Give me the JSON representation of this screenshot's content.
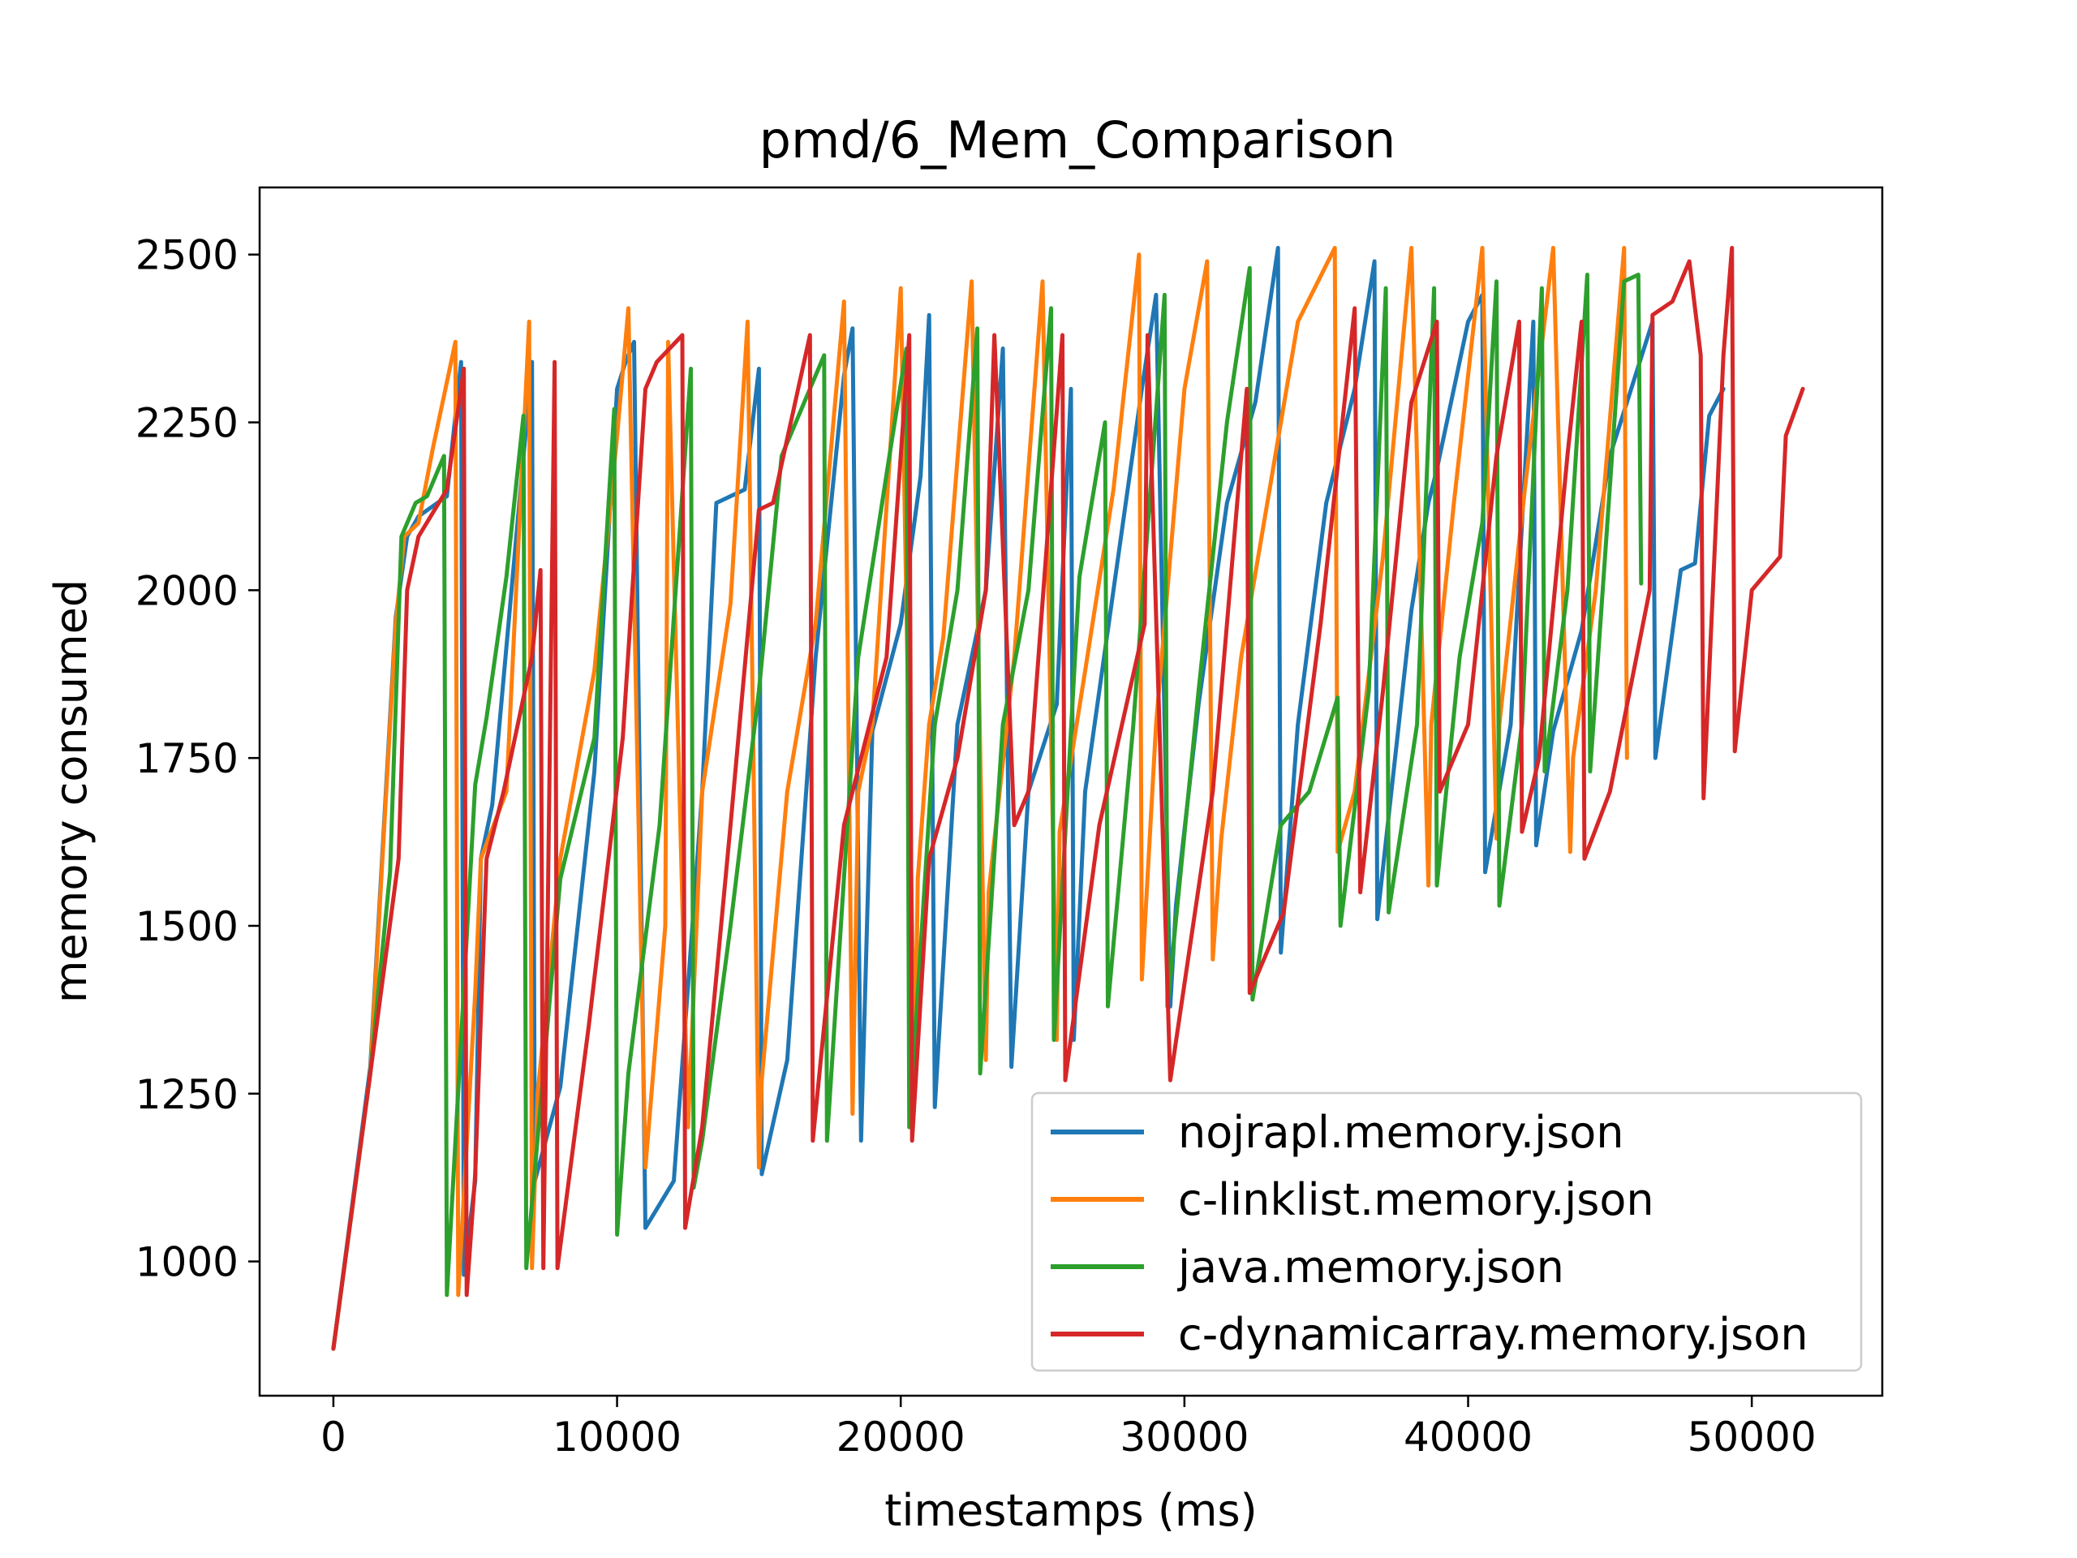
{
  "chart_data": {
    "type": "line",
    "title": "pmd/6_Mem_Comparison",
    "xlabel": "timestamps (ms)",
    "ylabel": "memory consumed",
    "xlim": [
      -2600,
      54600
    ],
    "ylim": [
      800,
      2600
    ],
    "xticks": [
      0,
      10000,
      20000,
      30000,
      40000,
      50000
    ],
    "xtick_labels": [
      "0",
      "10000",
      "20000",
      "30000",
      "40000",
      "50000"
    ],
    "yticks": [
      1000,
      1250,
      1500,
      1750,
      2000,
      2250,
      2500
    ],
    "ytick_labels": [
      "1000",
      "1250",
      "1500",
      "1750",
      "2000",
      "2250",
      "2500"
    ],
    "grid": false,
    "legend_position": "lower-right",
    "series": [
      {
        "name": "nojrapl.memory.json",
        "color": "#1f77b4",
        "x": [
          0,
          1300,
          2200,
          2600,
          3000,
          4000,
          4500,
          4600,
          5000,
          5200,
          5600,
          7000,
          7100,
          8000,
          9200,
          10000,
          10300,
          10600,
          11000,
          12000,
          13000,
          13500,
          14500,
          15000,
          15100,
          16000,
          17000,
          18000,
          18300,
          18600,
          19000,
          20000,
          20700,
          21000,
          21200,
          22000,
          23000,
          23600,
          23900,
          24500,
          25500,
          26000,
          26100,
          26500,
          27500,
          28500,
          29000,
          29500,
          29700,
          30500,
          31500,
          32500,
          33300,
          33400,
          34000,
          35000,
          36000,
          36700,
          36800,
          38000,
          38600,
          38900,
          40000,
          40500,
          40600,
          41500,
          42300,
          42400,
          43000,
          44000,
          45000,
          46500,
          46600,
          47500,
          48000,
          48500,
          49000
        ],
        "y": [
          870,
          1290,
          1960,
          2080,
          2110,
          2140,
          2340,
          980,
          1120,
          1600,
          1680,
          2340,
          1120,
          1260,
          1730,
          2300,
          2340,
          2370,
          1050,
          1120,
          1700,
          2130,
          2150,
          2330,
          1130,
          1300,
          1900,
          2320,
          2390,
          1180,
          1790,
          1950,
          2170,
          2410,
          1230,
          1800,
          2000,
          2360,
          1290,
          1700,
          1830,
          2300,
          1330,
          1700,
          2000,
          2300,
          2440,
          1380,
          1530,
          1830,
          2130,
          2280,
          2510,
          1460,
          1800,
          2130,
          2300,
          2490,
          1510,
          1970,
          2130,
          2180,
          2400,
          2440,
          1580,
          1800,
          2400,
          1620,
          1790,
          1940,
          2200,
          2400,
          1750,
          2030,
          2040,
          2260,
          2300
        ]
      },
      {
        "name": "c-linklist.memory.json",
        "color": "#ff7f0e",
        "x": [
          0,
          1300,
          2200,
          2500,
          3000,
          3500,
          4300,
          4400,
          5000,
          5200,
          6100,
          6900,
          7000,
          7200,
          8000,
          9200,
          10000,
          10400,
          11000,
          11700,
          11800,
          12500,
          13000,
          14000,
          14600,
          15000,
          15100,
          16000,
          17000,
          18000,
          18300,
          18500,
          19000,
          20000,
          20500,
          20600,
          21000,
          21500,
          22500,
          23000,
          23100,
          24000,
          25000,
          25500,
          25600,
          26500,
          27500,
          28400,
          28500,
          29000,
          30000,
          30800,
          31000,
          31300,
          32000,
          33000,
          34000,
          35300,
          35400,
          36000,
          37000,
          38000,
          38600,
          38700,
          39500,
          40500,
          41000,
          41100,
          42000,
          43000,
          43600,
          43700,
          44500,
          45500,
          45600
        ],
        "y": [
          870,
          1280,
          1950,
          2080,
          2100,
          2210,
          2370,
          950,
          1400,
          1600,
          1700,
          2400,
          990,
          1250,
          1600,
          1880,
          2230,
          2420,
          1140,
          1500,
          2370,
          1200,
          1700,
          1980,
          2400,
          1140,
          1270,
          1700,
          1950,
          2430,
          1220,
          1700,
          1800,
          2450,
          1270,
          1570,
          1800,
          1930,
          2460,
          1300,
          1550,
          1900,
          2460,
          1330,
          1640,
          1880,
          2150,
          2500,
          1420,
          1800,
          2300,
          2490,
          1450,
          1630,
          1900,
          2150,
          2400,
          2510,
          1610,
          1700,
          2050,
          2510,
          1560,
          1800,
          2130,
          2510,
          1630,
          1800,
          2150,
          2510,
          1610,
          1750,
          2000,
          2510,
          1750
        ]
      },
      {
        "name": "java.memory.json",
        "color": "#2ca02c",
        "x": [
          0,
          1300,
          2000,
          2400,
          2900,
          3300,
          3900,
          4000,
          5000,
          5400,
          6100,
          6700,
          6800,
          8000,
          9200,
          9900,
          10000,
          10400,
          11500,
          12600,
          12700,
          13000,
          14000,
          15000,
          15800,
          16800,
          17300,
          17400,
          18500,
          19600,
          20200,
          20300,
          21200,
          22000,
          22700,
          22800,
          23600,
          24500,
          25300,
          25400,
          26300,
          27200,
          27300,
          28200,
          29300,
          29400,
          30500,
          31500,
          32300,
          32400,
          33400,
          34400,
          35400,
          35500,
          36500,
          37100,
          37200,
          38200,
          38800,
          38900,
          39700,
          40500,
          41000,
          41100,
          41900,
          42600,
          42700,
          43500,
          44200,
          44300,
          45500,
          46000,
          46100
        ],
        "y": [
          870,
          1280,
          1580,
          2080,
          2130,
          2140,
          2200,
          950,
          1710,
          1810,
          2020,
          2260,
          990,
          1570,
          1780,
          2270,
          1040,
          1280,
          1650,
          2330,
          1110,
          1180,
          1500,
          1850,
          2200,
          2300,
          2350,
          1180,
          1900,
          2200,
          2360,
          1200,
          1800,
          2000,
          2390,
          1280,
          1800,
          2000,
          2420,
          1330,
          2020,
          2250,
          1380,
          1800,
          2440,
          1380,
          1850,
          2250,
          2480,
          1390,
          1650,
          1700,
          1840,
          1500,
          1850,
          2450,
          1520,
          1800,
          2450,
          1560,
          1900,
          2100,
          2460,
          1530,
          1800,
          2450,
          1730,
          2000,
          2470,
          1730,
          2460,
          2470,
          2010
        ]
      },
      {
        "name": "c-dynamicarray.memory.json",
        "color": "#d62728",
        "x": [
          0,
          1300,
          2300,
          2600,
          3000,
          4000,
          4600,
          4700,
          5000,
          5400,
          6000,
          7000,
          7300,
          7400,
          7800,
          7900,
          9000,
          10200,
          11000,
          11400,
          12300,
          12400,
          13000,
          14000,
          15000,
          15500,
          16800,
          16900,
          18000,
          19500,
          20300,
          20400,
          21000,
          22000,
          23000,
          23300,
          24000,
          24500,
          25700,
          25800,
          27000,
          28600,
          28700,
          29500,
          31000,
          32200,
          32300,
          33500,
          34800,
          36000,
          36200,
          37000,
          38000,
          38900,
          39000,
          40000,
          41000,
          41800,
          41900,
          42500,
          43500,
          44000,
          44100,
          45000,
          46400,
          46500,
          47200,
          47800,
          48200,
          48300,
          49000,
          49300,
          49400,
          50000,
          51000,
          51200,
          51800
        ],
        "y": [
          870,
          1280,
          1600,
          2000,
          2080,
          2150,
          2330,
          950,
          1130,
          1600,
          1700,
          1900,
          2030,
          990,
          2340,
          990,
          1350,
          1780,
          2300,
          2340,
          2380,
          1050,
          1200,
          1650,
          2120,
          2130,
          2380,
          1180,
          1650,
          1900,
          2380,
          1180,
          1600,
          1750,
          2000,
          2380,
          1650,
          1700,
          2380,
          1270,
          1650,
          1950,
          2380,
          1270,
          1700,
          2300,
          1400,
          1520,
          1950,
          2420,
          1550,
          1850,
          2280,
          2400,
          1700,
          1800,
          2200,
          2400,
          1640,
          1750,
          2200,
          2400,
          1600,
          1700,
          2000,
          2410,
          2430,
          2490,
          2350,
          1690,
          2350,
          2510,
          1760,
          2000,
          2050,
          2230,
          2300
        ]
      }
    ]
  }
}
